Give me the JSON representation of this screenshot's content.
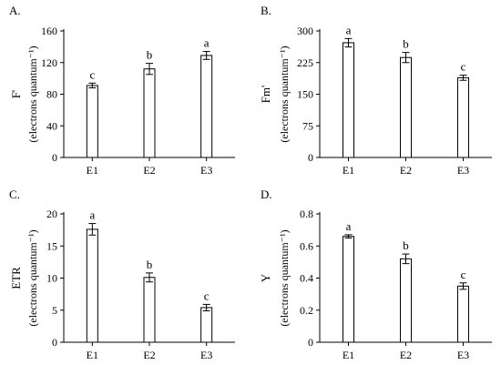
{
  "chart_data": [
    {
      "panel_label": "A.",
      "type": "bar",
      "categories": [
        "E1",
        "E2",
        "E3"
      ],
      "values": [
        91,
        112,
        129
      ],
      "errors": [
        3,
        7,
        5
      ],
      "significance": [
        "c",
        "b",
        "a"
      ],
      "ylabel": "F'",
      "yunit": "(electrons quantum⁻¹)",
      "ylim": [
        0,
        160
      ],
      "yticks": [
        0,
        40,
        80,
        120,
        160
      ],
      "grid": false,
      "legend": "none"
    },
    {
      "panel_label": "B.",
      "type": "bar",
      "categories": [
        "E1",
        "E2",
        "E3"
      ],
      "values": [
        272,
        237,
        189
      ],
      "errors": [
        10,
        12,
        6
      ],
      "significance": [
        "a",
        "b",
        "c"
      ],
      "ylabel": "Fm'",
      "yunit": "(electrons quantum⁻¹)",
      "ylim": [
        0,
        300
      ],
      "yticks": [
        0,
        75,
        150,
        225,
        300
      ],
      "grid": false,
      "legend": "none"
    },
    {
      "panel_label": "C.",
      "type": "bar",
      "categories": [
        "E1",
        "E2",
        "E3"
      ],
      "values": [
        17.6,
        10.1,
        5.4
      ],
      "errors": [
        0.9,
        0.7,
        0.5
      ],
      "significance": [
        "a",
        "b",
        "c"
      ],
      "ylabel": "ETR",
      "yunit": "(electrons quantum⁻¹)",
      "ylim": [
        0,
        20
      ],
      "yticks": [
        0,
        5,
        10,
        15,
        20
      ],
      "grid": false,
      "legend": "none"
    },
    {
      "panel_label": "D.",
      "type": "bar",
      "categories": [
        "E1",
        "E2",
        "E3"
      ],
      "values": [
        0.66,
        0.52,
        0.35
      ],
      "errors": [
        0.01,
        0.03,
        0.02
      ],
      "significance": [
        "a",
        "b",
        "c"
      ],
      "ylabel": "Y",
      "yunit": "(electrons quantum⁻¹)",
      "ylim": [
        0,
        0.8
      ],
      "yticks": [
        0,
        0.2,
        0.4,
        0.6,
        0.8
      ],
      "grid": false,
      "legend": "none"
    }
  ]
}
